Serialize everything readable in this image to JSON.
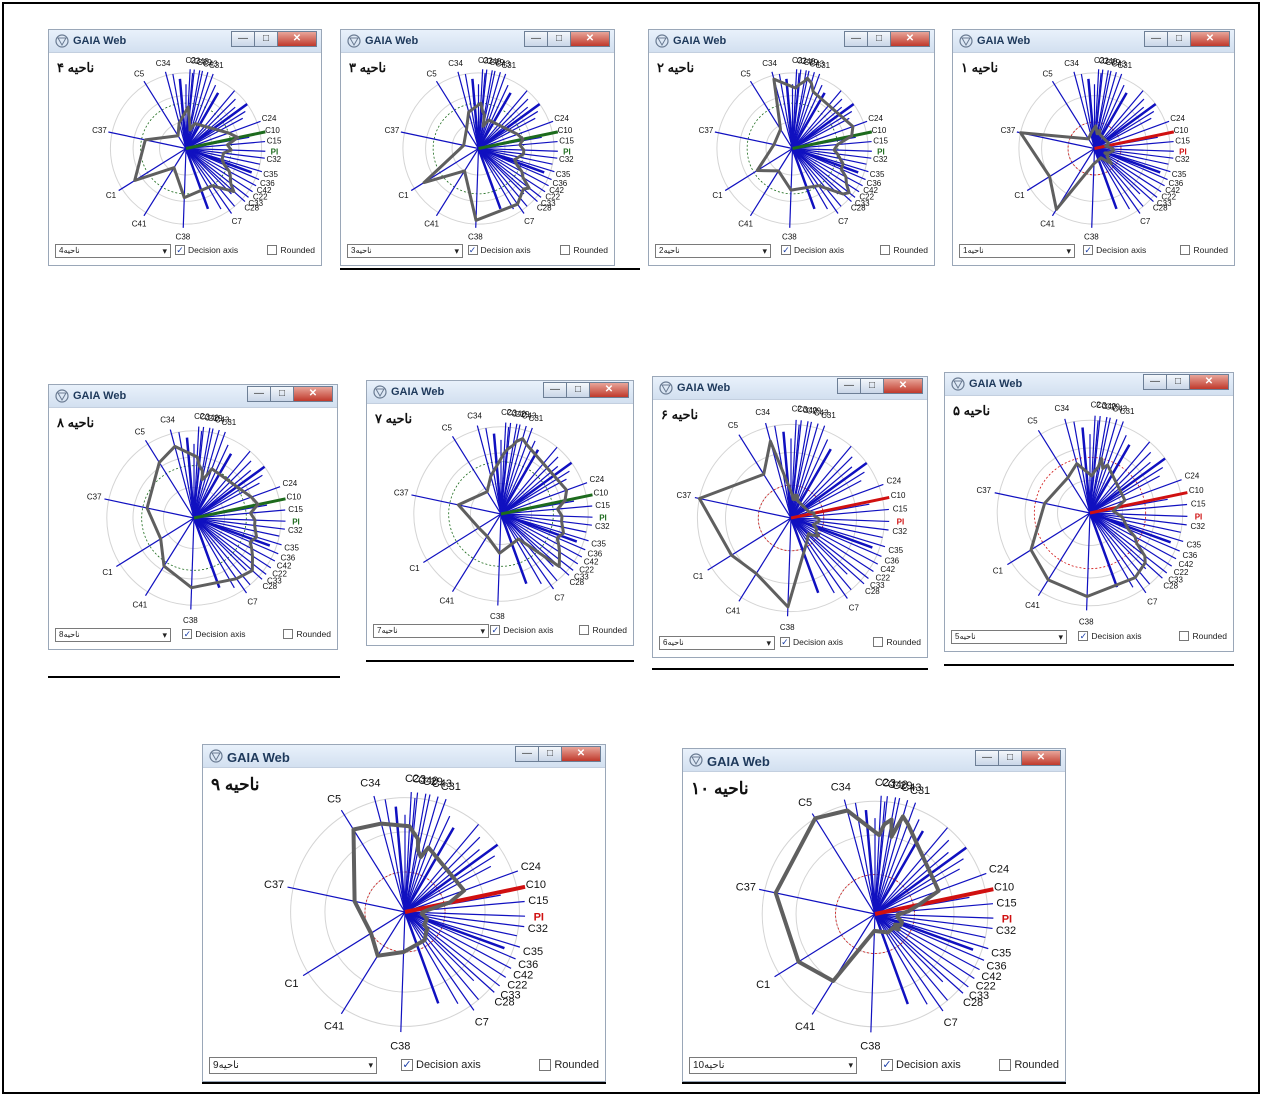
{
  "app_title": "GAIA Web",
  "controls": {
    "decision_axis": "Decision axis",
    "rounded": "Rounded",
    "decision_checked": true,
    "rounded_checked": false
  },
  "axis_labels": [
    "C34",
    "C5",
    "C37",
    "C1",
    "C41",
    "C38",
    "C7",
    "C28",
    "C33",
    "C22",
    "C42",
    "C36",
    "C35",
    "C32",
    "PI",
    "C15",
    "C10",
    "C24",
    "C31",
    "C43",
    "C29",
    "C40",
    "C3",
    "C2"
  ],
  "colors": {
    "axis": "#1010c0",
    "profile": "#5f5f5f",
    "decision_green": "#1d6b1d",
    "decision_red": "#d01010",
    "grid": "#d4d4d4"
  },
  "windows": [
    {
      "region_label": "ناحیه ۴",
      "dropdown_value": "ناحیه4",
      "decision_color": "green"
    },
    {
      "region_label": "ناحیه ۳",
      "dropdown_value": "ناحیه3",
      "decision_color": "green"
    },
    {
      "region_label": "ناحیه ۲",
      "dropdown_value": "ناحیه2",
      "decision_color": "green"
    },
    {
      "region_label": "ناحیه ۱",
      "dropdown_value": "ناحیه1",
      "decision_color": "red"
    },
    {
      "region_label": "ناحیه ۸",
      "dropdown_value": "ناحیه8",
      "decision_color": "green"
    },
    {
      "region_label": "ناحیه ۷",
      "dropdown_value": "ناحیه7",
      "decision_color": "green"
    },
    {
      "region_label": "ناحیه ۶",
      "dropdown_value": "ناحیه6",
      "decision_color": "red"
    },
    {
      "region_label": "ناحیه ۵",
      "dropdown_value": "ناحیه5",
      "decision_color": "red"
    },
    {
      "region_label": "ناحیه ۹",
      "dropdown_value": "ناحیه9",
      "decision_color": "red"
    },
    {
      "region_label": "ناحیه ۱۰",
      "dropdown_value": "ناحیه10",
      "decision_color": "red"
    }
  ]
}
